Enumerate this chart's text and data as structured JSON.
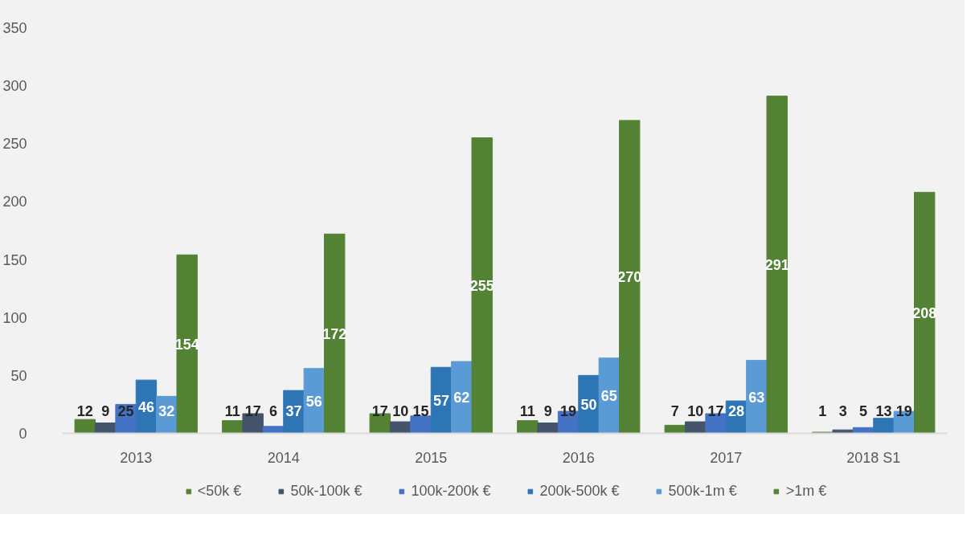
{
  "chart_data": {
    "type": "bar",
    "categories": [
      "2013",
      "2014",
      "2015",
      "2016",
      "2017",
      "2018 S1"
    ],
    "series": [
      {
        "name": "<50k €",
        "color": "#548235",
        "values": [
          12,
          11,
          17,
          11,
          7,
          1
        ]
      },
      {
        "name": "50k-100k €",
        "color": "#44546a",
        "values": [
          9,
          17,
          10,
          9,
          10,
          3
        ]
      },
      {
        "name": "100k-200k €",
        "color": "#4472c4",
        "values": [
          25,
          6,
          15,
          19,
          17,
          5
        ]
      },
      {
        "name": "200k-500k €",
        "color": "#2e75b6",
        "values": [
          46,
          37,
          57,
          50,
          28,
          13
        ]
      },
      {
        "name": "500k-1m €",
        "color": "#5b9bd5",
        "values": [
          32,
          56,
          62,
          65,
          63,
          19
        ]
      },
      {
        "name": ">1m €",
        "color": "#548235",
        "values": [
          154,
          172,
          255,
          270,
          291,
          208
        ]
      }
    ],
    "ylim": [
      0,
      350
    ],
    "yticks": [
      0,
      50,
      100,
      150,
      200,
      250,
      300,
      350
    ],
    "data_labels": true,
    "grid": false,
    "legend": "bottom"
  }
}
